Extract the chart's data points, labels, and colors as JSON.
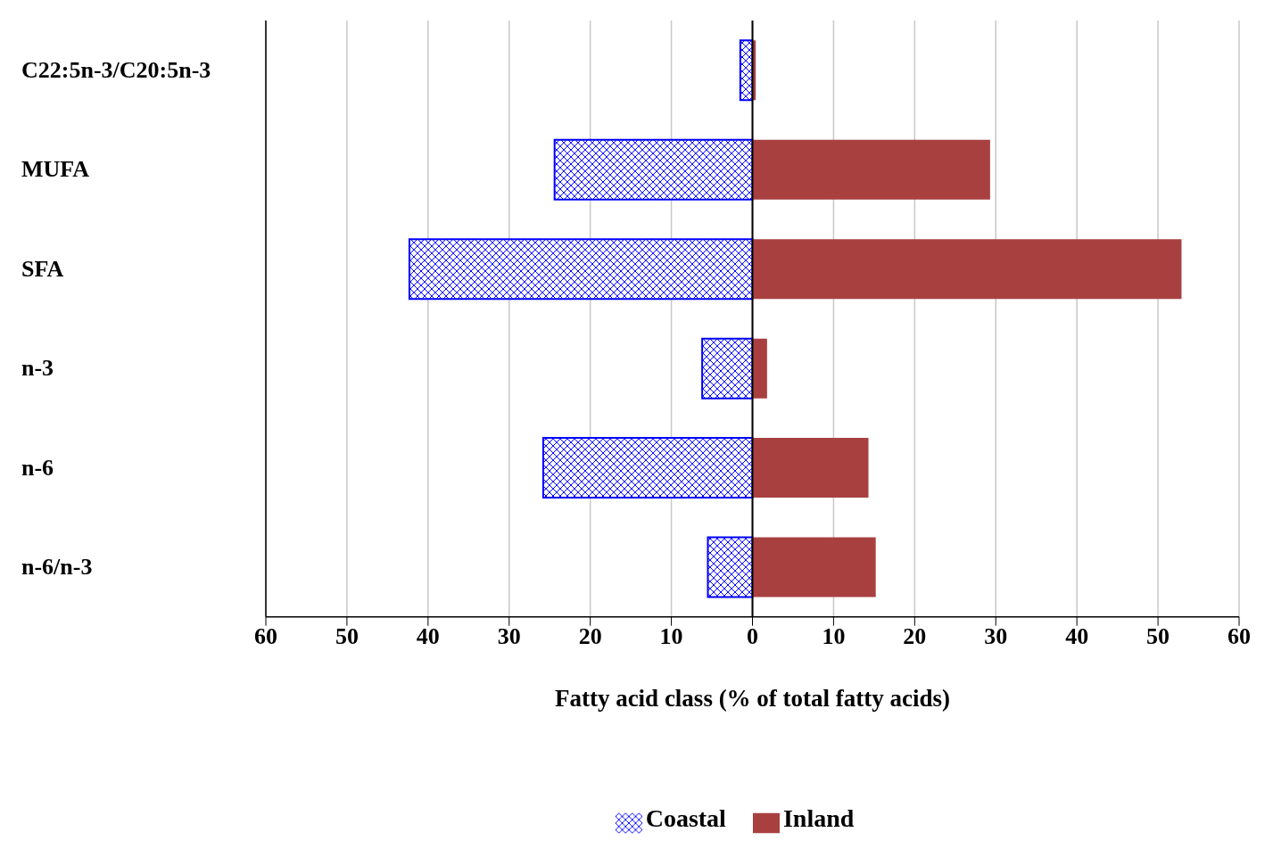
{
  "chart_data": {
    "type": "bar",
    "orientation": "horizontal",
    "xlabel": "Fatty acid class (% of total fatty acids)",
    "categories": [
      "C22:5n-3/C20:5n-3",
      "MUFA",
      "SFA",
      "n-3",
      "n-6",
      "n-6/n-3"
    ],
    "series": [
      {
        "name": "Coastal",
        "color": "#0000ff",
        "values": [
          -1.5,
          -24.4,
          -42.3,
          -6.2,
          -25.8,
          -5.5
        ]
      },
      {
        "name": "Inland",
        "color": "#a94040",
        "values": [
          0.4,
          29.3,
          52.9,
          1.8,
          14.3,
          15.2
        ]
      }
    ],
    "xlim": [
      -60,
      60
    ],
    "xticks": [
      {
        "value": -60,
        "label": "60"
      },
      {
        "value": -50,
        "label": "50"
      },
      {
        "value": -40,
        "label": "40"
      },
      {
        "value": -30,
        "label": "30"
      },
      {
        "value": -20,
        "label": "20"
      },
      {
        "value": -10,
        "label": "10"
      },
      0,
      10,
      20,
      30,
      40,
      50,
      60
    ],
    "ref_lines": [
      {
        "axis": "x",
        "value": 0,
        "color": "#000000"
      }
    ],
    "stacked": true,
    "grid": "x",
    "legend": "bottom"
  }
}
